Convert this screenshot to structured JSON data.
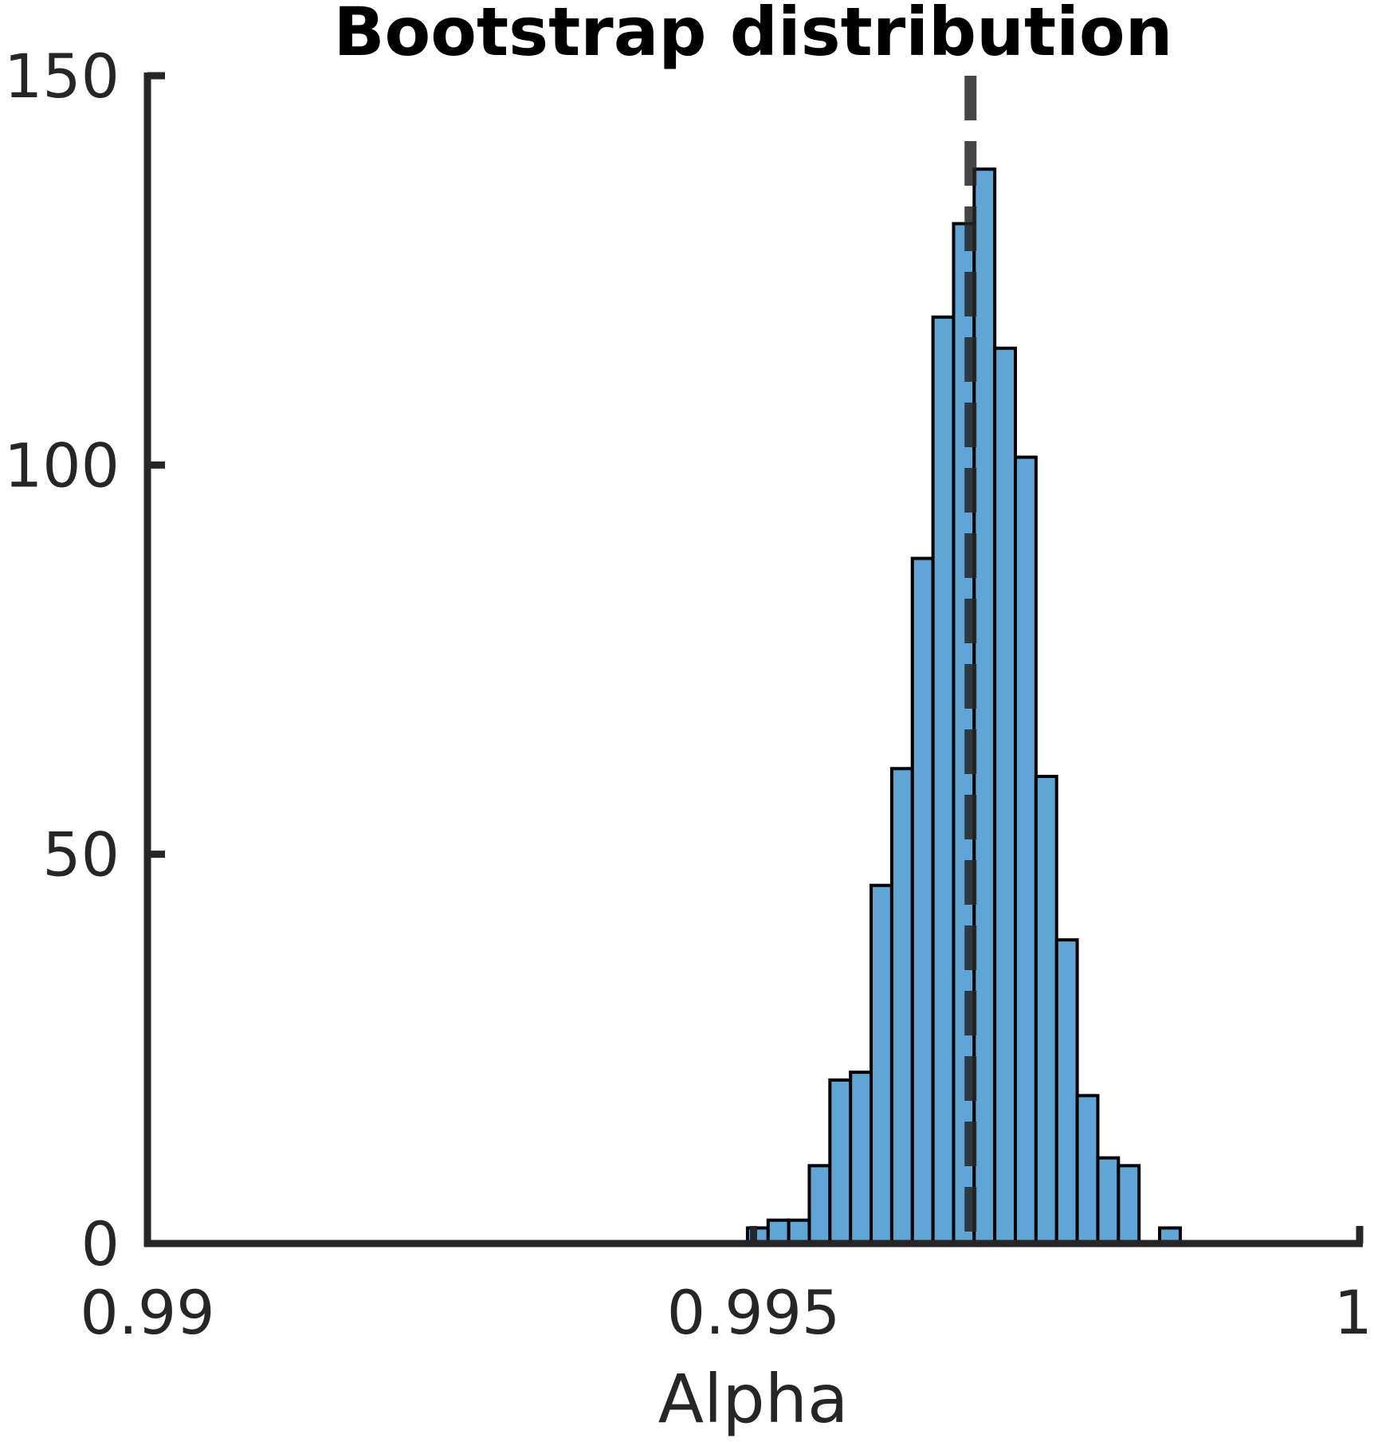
{
  "chart_data": {
    "type": "bar",
    "title": "Bootstrap distribution",
    "xlabel": "Alpha",
    "ylabel": "",
    "xlim": [
      0.99,
      1.0
    ],
    "ylim": [
      0,
      150
    ],
    "x_ticks": [
      0.99,
      0.995,
      1.0
    ],
    "x_tick_labels": [
      "0.99",
      "0.995",
      "1"
    ],
    "y_ticks": [
      0,
      50,
      100,
      150
    ],
    "y_tick_labels": [
      "0",
      "50",
      "100",
      "150"
    ],
    "grid": false,
    "bin_width": 0.00017,
    "bins": [
      {
        "x0": 0.99495,
        "x1": 0.99512,
        "count": 2
      },
      {
        "x0": 0.99512,
        "x1": 0.99529,
        "count": 3
      },
      {
        "x0": 0.99529,
        "x1": 0.99546,
        "count": 3
      },
      {
        "x0": 0.99546,
        "x1": 0.99563,
        "count": 10
      },
      {
        "x0": 0.99563,
        "x1": 0.9958,
        "count": 21
      },
      {
        "x0": 0.9958,
        "x1": 0.99597,
        "count": 22
      },
      {
        "x0": 0.99597,
        "x1": 0.99614,
        "count": 46
      },
      {
        "x0": 0.99614,
        "x1": 0.99631,
        "count": 61
      },
      {
        "x0": 0.99631,
        "x1": 0.99648,
        "count": 88
      },
      {
        "x0": 0.99648,
        "x1": 0.99665,
        "count": 119
      },
      {
        "x0": 0.99665,
        "x1": 0.99682,
        "count": 131
      },
      {
        "x0": 0.99682,
        "x1": 0.99699,
        "count": 138
      },
      {
        "x0": 0.99699,
        "x1": 0.99716,
        "count": 115
      },
      {
        "x0": 0.99716,
        "x1": 0.99733,
        "count": 101
      },
      {
        "x0": 0.99733,
        "x1": 0.9975,
        "count": 60
      },
      {
        "x0": 0.9975,
        "x1": 0.99767,
        "count": 39
      },
      {
        "x0": 0.99767,
        "x1": 0.99784,
        "count": 19
      },
      {
        "x0": 0.99784,
        "x1": 0.99801,
        "count": 11
      },
      {
        "x0": 0.99801,
        "x1": 0.99818,
        "count": 10
      },
      {
        "x0": 0.99818,
        "x1": 0.99835,
        "count": 0
      },
      {
        "x0": 0.99835,
        "x1": 0.99852,
        "count": 2
      }
    ],
    "reference_line": {
      "x": 0.99679,
      "style": "dashed"
    },
    "colors": {
      "bar_fill": "#5fa6d6",
      "bar_edge": "#000000",
      "axis": "#262626",
      "text": "#262626",
      "title": "#000000",
      "reference_line": "#262626"
    }
  }
}
